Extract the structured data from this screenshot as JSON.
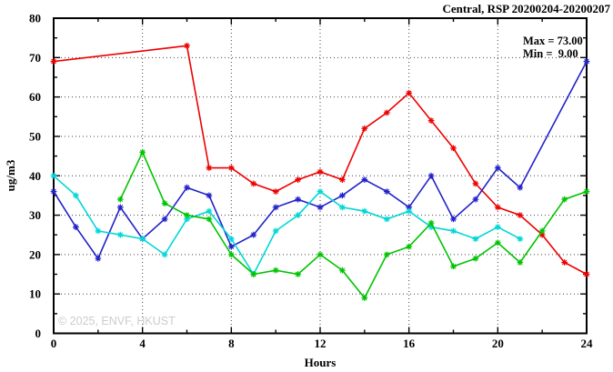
{
  "title": "Central, RSP 20200204-20200207",
  "annotations": {
    "max_label": "Max = 73.00",
    "min_label": "Min =  9.00"
  },
  "watermark": "© 2025, ENVF, HKUST",
  "chart_data": {
    "type": "line",
    "title": "Central, RSP 20200204-20200207",
    "xlabel": "Hours",
    "ylabel": "ug/m3",
    "xlim": [
      0,
      24
    ],
    "ylim": [
      0,
      80
    ],
    "x_major_ticks": [
      0,
      4,
      8,
      12,
      16,
      20,
      24
    ],
    "x_minor_step": 2,
    "y_major_ticks": [
      0,
      10,
      20,
      30,
      40,
      50,
      60,
      70,
      80
    ],
    "y_minor_step": 5,
    "grid": "dotted-at-major-ticks",
    "legend_position": "none",
    "marker": "asterisk",
    "stat_max": 73.0,
    "stat_min": 9.0,
    "frame_color": "#000000",
    "series": [
      {
        "name": "series-red",
        "color": "#ee0000",
        "points": [
          [
            0,
            69
          ],
          [
            6,
            73
          ],
          [
            7,
            42
          ],
          [
            8,
            42
          ],
          [
            9,
            38
          ],
          [
            10,
            36
          ],
          [
            11,
            39
          ],
          [
            12,
            41
          ],
          [
            13,
            39
          ],
          [
            14,
            52
          ],
          [
            15,
            56
          ],
          [
            16,
            61
          ],
          [
            17,
            54
          ],
          [
            18,
            47
          ],
          [
            19,
            38
          ],
          [
            20,
            32
          ],
          [
            21,
            30
          ],
          [
            22,
            25
          ],
          [
            23,
            18
          ],
          [
            24,
            15
          ]
        ]
      },
      {
        "name": "series-blue",
        "color": "#2222cc",
        "points": [
          [
            0,
            36
          ],
          [
            1,
            27
          ],
          [
            2,
            19
          ],
          [
            3,
            32
          ],
          [
            4,
            24
          ],
          [
            5,
            29
          ],
          [
            6,
            37
          ],
          [
            7,
            35
          ],
          [
            8,
            22
          ],
          [
            9,
            25
          ],
          [
            10,
            32
          ],
          [
            11,
            34
          ],
          [
            12,
            32
          ],
          [
            13,
            35
          ],
          [
            14,
            39
          ],
          [
            15,
            36
          ],
          [
            16,
            32
          ],
          [
            17,
            40
          ],
          [
            18,
            29
          ],
          [
            19,
            34
          ],
          [
            20,
            42
          ],
          [
            21,
            37
          ],
          [
            24,
            69
          ]
        ]
      },
      {
        "name": "series-cyan",
        "color": "#00d7d7",
        "points": [
          [
            0,
            40
          ],
          [
            1,
            35
          ],
          [
            2,
            26
          ],
          [
            3,
            25
          ],
          [
            4,
            24
          ],
          [
            5,
            20
          ],
          [
            6,
            29
          ],
          [
            7,
            31
          ],
          [
            8,
            24
          ],
          [
            9,
            15
          ],
          [
            10,
            26
          ],
          [
            11,
            30
          ],
          [
            12,
            36
          ],
          [
            13,
            32
          ],
          [
            14,
            31
          ],
          [
            15,
            29
          ],
          [
            16,
            31
          ],
          [
            17,
            27
          ],
          [
            18,
            26
          ],
          [
            19,
            24
          ],
          [
            20,
            27
          ],
          [
            21,
            24
          ]
        ]
      },
      {
        "name": "series-green",
        "color": "#00c400",
        "points": [
          [
            3,
            34
          ],
          [
            4,
            46
          ],
          [
            5,
            33
          ],
          [
            6,
            30
          ],
          [
            7,
            29
          ],
          [
            8,
            20
          ],
          [
            9,
            15
          ],
          [
            10,
            16
          ],
          [
            11,
            15
          ],
          [
            12,
            20
          ],
          [
            13,
            16
          ],
          [
            14,
            9
          ],
          [
            15,
            20
          ],
          [
            16,
            22
          ],
          [
            17,
            28
          ],
          [
            18,
            17
          ],
          [
            19,
            19
          ],
          [
            20,
            23
          ],
          [
            21,
            18
          ],
          [
            22,
            26
          ],
          [
            23,
            34
          ],
          [
            24,
            36
          ]
        ]
      }
    ]
  }
}
